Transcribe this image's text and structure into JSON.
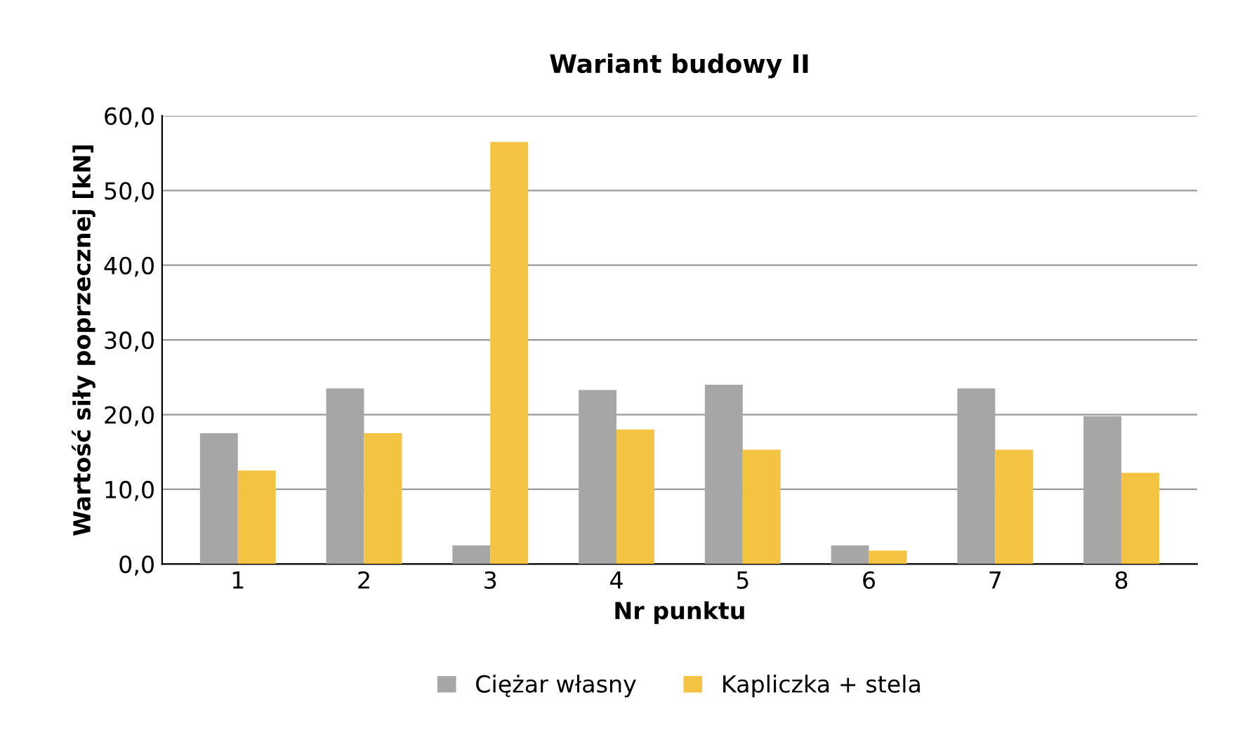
{
  "chart_data": {
    "type": "bar",
    "title": "Wariant budowy II",
    "xlabel": "Nr punktu",
    "ylabel": "Wartość siły poprzecznej [kN]",
    "categories": [
      "1",
      "2",
      "3",
      "4",
      "5",
      "6",
      "7",
      "8"
    ],
    "series": [
      {
        "name": "Ciężar własny",
        "color": "#a6a6a6",
        "values": [
          17.5,
          23.5,
          2.5,
          23.3,
          24.0,
          2.5,
          23.5,
          19.8
        ]
      },
      {
        "name": "Kapliczka + stela",
        "color": "#f5c342",
        "values": [
          12.5,
          17.5,
          56.5,
          18.0,
          15.3,
          1.8,
          15.3,
          12.2
        ]
      }
    ],
    "ylim": [
      0,
      60
    ],
    "yticks": [
      {
        "value": 0,
        "label": "0,0"
      },
      {
        "value": 10,
        "label": "10,0"
      },
      {
        "value": 20,
        "label": "20,0"
      },
      {
        "value": 30,
        "label": "30,0"
      },
      {
        "value": 40,
        "label": "40,0"
      },
      {
        "value": 50,
        "label": "50,0"
      },
      {
        "value": 60,
        "label": "60,0"
      }
    ],
    "grid": "y",
    "legend": "bottom"
  }
}
